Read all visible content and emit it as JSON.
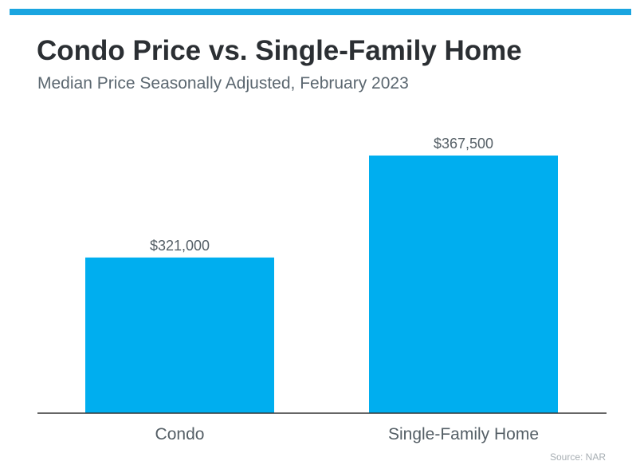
{
  "colors": {
    "accent_bar": "#1aa5e0",
    "bar": "#00aeef",
    "axis": "#333333",
    "title": "#2b2f33",
    "subtitle": "#5b6770",
    "label": "#555f66",
    "source": "#a7aeb3"
  },
  "chart_data": {
    "type": "bar",
    "title": "Condo Price vs. Single-Family Home",
    "subtitle": "Median Price Seasonally Adjusted, February 2023",
    "categories": [
      "Condo",
      "Single-Family Home"
    ],
    "values": [
      321000,
      367500
    ],
    "value_labels": [
      "$321,000",
      "$367,500"
    ],
    "xlabel": "",
    "ylabel": "",
    "ylim": [
      250000,
      380000
    ],
    "grid": false,
    "legend": "none",
    "source": "Source: NAR"
  }
}
